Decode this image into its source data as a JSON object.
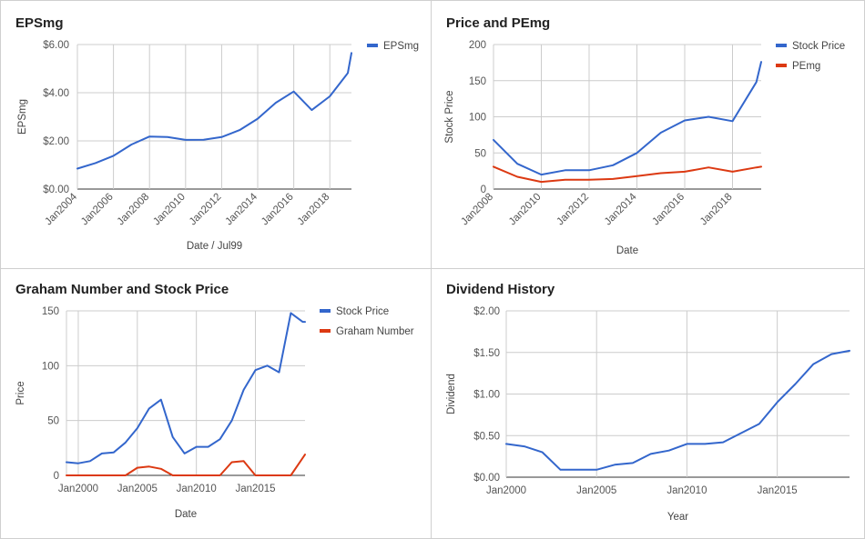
{
  "charts": [
    {
      "title": "EPSmg",
      "chart_data": {
        "type": "line",
        "title": "EPSmg",
        "xlabel": "Date / Jul99",
        "ylabel": "EPSmg",
        "xlim": [
          2004,
          2019.2
        ],
        "ylim": [
          0,
          6
        ],
        "yticks": [
          {
            "v": 0,
            "label": "$0.00"
          },
          {
            "v": 2,
            "label": "$2.00"
          },
          {
            "v": 4,
            "label": "$4.00"
          },
          {
            "v": 6,
            "label": "$6.00"
          }
        ],
        "xticks": [
          {
            "v": 2004,
            "label": "Jan2004"
          },
          {
            "v": 2006,
            "label": "Jan2006"
          },
          {
            "v": 2008,
            "label": "Jan2008"
          },
          {
            "v": 2010,
            "label": "Jan2010"
          },
          {
            "v": 2012,
            "label": "Jan2012"
          },
          {
            "v": 2014,
            "label": "Jan2014"
          },
          {
            "v": 2016,
            "label": "Jan2016"
          },
          {
            "v": 2018,
            "label": "Jan2018"
          }
        ],
        "xtick_rotate": true,
        "grid": true,
        "legend": "right",
        "series": [
          {
            "name": "EPSmg",
            "color": "#3366cc",
            "x": [
              2004,
              2005,
              2006,
              2007,
              2008,
              2009,
              2010,
              2011,
              2012,
              2013,
              2014,
              2015,
              2016,
              2017,
              2018,
              2019,
              2019.2
            ],
            "y": [
              0.85,
              1.08,
              1.38,
              1.85,
              2.18,
              2.16,
              2.04,
              2.05,
              2.16,
              2.45,
              2.92,
              3.58,
              4.05,
              3.28,
              3.85,
              4.82,
              5.65
            ]
          }
        ]
      }
    },
    {
      "title": "Price and PEmg",
      "chart_data": {
        "type": "line",
        "title": "Price and PEmg",
        "xlabel": "Date",
        "ylabel": "Stock Price",
        "xlim": [
          2008,
          2019.2
        ],
        "ylim": [
          0,
          200
        ],
        "yticks": [
          {
            "v": 0,
            "label": "0"
          },
          {
            "v": 50,
            "label": "50"
          },
          {
            "v": 100,
            "label": "100"
          },
          {
            "v": 150,
            "label": "150"
          },
          {
            "v": 200,
            "label": "200"
          }
        ],
        "xticks": [
          {
            "v": 2008,
            "label": "Jan2008"
          },
          {
            "v": 2010,
            "label": "Jan2010"
          },
          {
            "v": 2012,
            "label": "Jan2012"
          },
          {
            "v": 2014,
            "label": "Jan2014"
          },
          {
            "v": 2016,
            "label": "Jan2016"
          },
          {
            "v": 2018,
            "label": "Jan2018"
          }
        ],
        "xtick_rotate": true,
        "grid": true,
        "legend": "right",
        "series": [
          {
            "name": "Stock Price",
            "color": "#3366cc",
            "x": [
              2008,
              2009,
              2010,
              2011,
              2012,
              2013,
              2014,
              2015,
              2016,
              2017,
              2018,
              2019,
              2019.2
            ],
            "y": [
              68,
              35,
              20,
              26,
              26,
              33,
              50,
              78,
              95,
              100,
              94,
              148,
              176
            ]
          },
          {
            "name": "PEmg",
            "color": "#dc3912",
            "x": [
              2008,
              2009,
              2010,
              2011,
              2012,
              2013,
              2014,
              2015,
              2016,
              2017,
              2018,
              2019,
              2019.2
            ],
            "y": [
              31,
              17,
              10,
              13,
              13,
              14,
              18,
              22,
              24,
              30,
              24,
              30,
              31
            ]
          }
        ]
      }
    },
    {
      "title": "Graham Number and Stock Price",
      "chart_data": {
        "type": "line",
        "title": "Graham Number and Stock Price",
        "xlabel": "Date",
        "ylabel": "Price",
        "xlim": [
          1999,
          2019.2
        ],
        "ylim": [
          0,
          150
        ],
        "yticks": [
          {
            "v": 0,
            "label": "0"
          },
          {
            "v": 50,
            "label": "50"
          },
          {
            "v": 100,
            "label": "100"
          },
          {
            "v": 150,
            "label": "150"
          }
        ],
        "xticks": [
          {
            "v": 2000,
            "label": "Jan2000"
          },
          {
            "v": 2005,
            "label": "Jan2005"
          },
          {
            "v": 2010,
            "label": "Jan2010"
          },
          {
            "v": 2015,
            "label": "Jan2015"
          }
        ],
        "xtick_rotate": false,
        "grid": true,
        "legend": "right",
        "series": [
          {
            "name": "Stock Price",
            "color": "#3366cc",
            "x": [
              1999,
              2000,
              2001,
              2002,
              2003,
              2004,
              2005,
              2006,
              2007,
              2008,
              2009,
              2010,
              2011,
              2012,
              2013,
              2014,
              2015,
              2016,
              2017,
              2018,
              2019,
              2019.2
            ],
            "y": [
              12,
              11,
              13,
              20,
              21,
              30,
              43,
              61,
              69,
              35,
              20,
              26,
              26,
              33,
              50,
              78,
              96,
              100,
              94,
              148,
              140,
              140
            ]
          },
          {
            "name": "Graham Number",
            "color": "#dc3912",
            "x": [
              1999,
              2000,
              2001,
              2002,
              2003,
              2004,
              2005,
              2006,
              2007,
              2008,
              2009,
              2010,
              2011,
              2012,
              2013,
              2014,
              2015,
              2016,
              2017,
              2018,
              2019.2
            ],
            "y": [
              0,
              0,
              0,
              0,
              0,
              0,
              7,
              8,
              6,
              0,
              0,
              0,
              0,
              0,
              12,
              13,
              0,
              0,
              0,
              0,
              19
            ]
          }
        ]
      }
    },
    {
      "title": "Dividend History",
      "chart_data": {
        "type": "line",
        "title": "Dividend History",
        "xlabel": "Year",
        "ylabel": "Dividend",
        "xlim": [
          2000,
          2019
        ],
        "ylim": [
          0,
          2
        ],
        "yticks": [
          {
            "v": 0,
            "label": "$0.00"
          },
          {
            "v": 0.5,
            "label": "$0.50"
          },
          {
            "v": 1,
            "label": "$1.00"
          },
          {
            "v": 1.5,
            "label": "$1.50"
          },
          {
            "v": 2,
            "label": "$2.00"
          }
        ],
        "xticks": [
          {
            "v": 2000,
            "label": "Jan2000"
          },
          {
            "v": 2005,
            "label": "Jan2005"
          },
          {
            "v": 2010,
            "label": "Jan2010"
          },
          {
            "v": 2015,
            "label": "Jan2015"
          }
        ],
        "xtick_rotate": false,
        "grid": true,
        "legend": "none",
        "series": [
          {
            "name": "",
            "color": "#3366cc",
            "x": [
              2000,
              2001,
              2002,
              2003,
              2004,
              2005,
              2006,
              2007,
              2008,
              2009,
              2010,
              2011,
              2012,
              2013,
              2014,
              2015,
              2016,
              2017,
              2018,
              2019
            ],
            "y": [
              0.4,
              0.37,
              0.3,
              0.09,
              0.09,
              0.09,
              0.15,
              0.17,
              0.28,
              0.32,
              0.4,
              0.4,
              0.42,
              0.53,
              0.64,
              0.9,
              1.12,
              1.36,
              1.48,
              1.52
            ]
          }
        ]
      }
    }
  ]
}
